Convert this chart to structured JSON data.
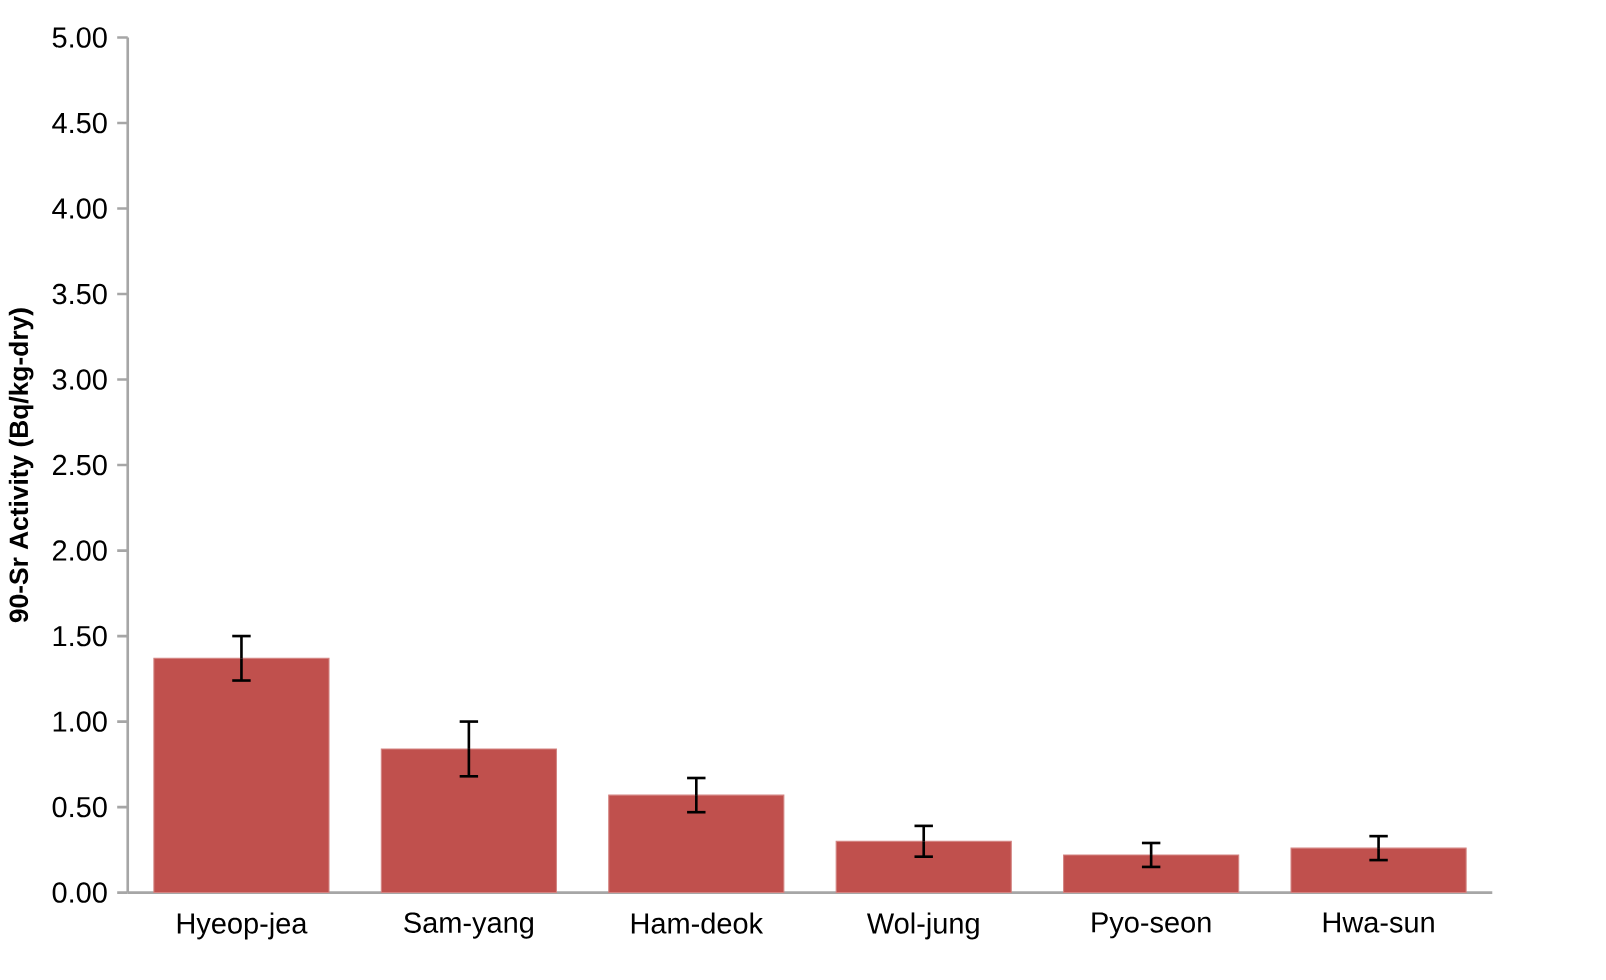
{
  "chart_data": {
    "type": "bar",
    "ylabel": "90-Sr Activity (Bq/kg-dry)",
    "categories": [
      "Hyeop-jea",
      "Sam-yang",
      "Ham-deok",
      "Wol-jung",
      "Pyo-seon",
      "Hwa-sun"
    ],
    "values": [
      1.37,
      0.84,
      0.57,
      0.3,
      0.22,
      0.26
    ],
    "errors": [
      0.13,
      0.16,
      0.1,
      0.09,
      0.07,
      0.07
    ],
    "color": "#c0504d",
    "ylim": [
      0,
      5
    ],
    "yticks": [
      {
        "value": 0,
        "label": "0.00"
      },
      {
        "value": 0.5,
        "label": "0.50"
      },
      {
        "value": 1,
        "label": "1.00"
      },
      {
        "value": 1.5,
        "label": "1.50"
      },
      {
        "value": 2,
        "label": "2.00"
      },
      {
        "value": 2.5,
        "label": "2.50"
      },
      {
        "value": 3,
        "label": "3.00"
      },
      {
        "value": 3.5,
        "label": "3.50"
      },
      {
        "value": 4,
        "label": "4.00"
      },
      {
        "value": 4.5,
        "label": "4.50"
      },
      {
        "value": 5,
        "label": "5.00"
      }
    ],
    "grid": false
  }
}
